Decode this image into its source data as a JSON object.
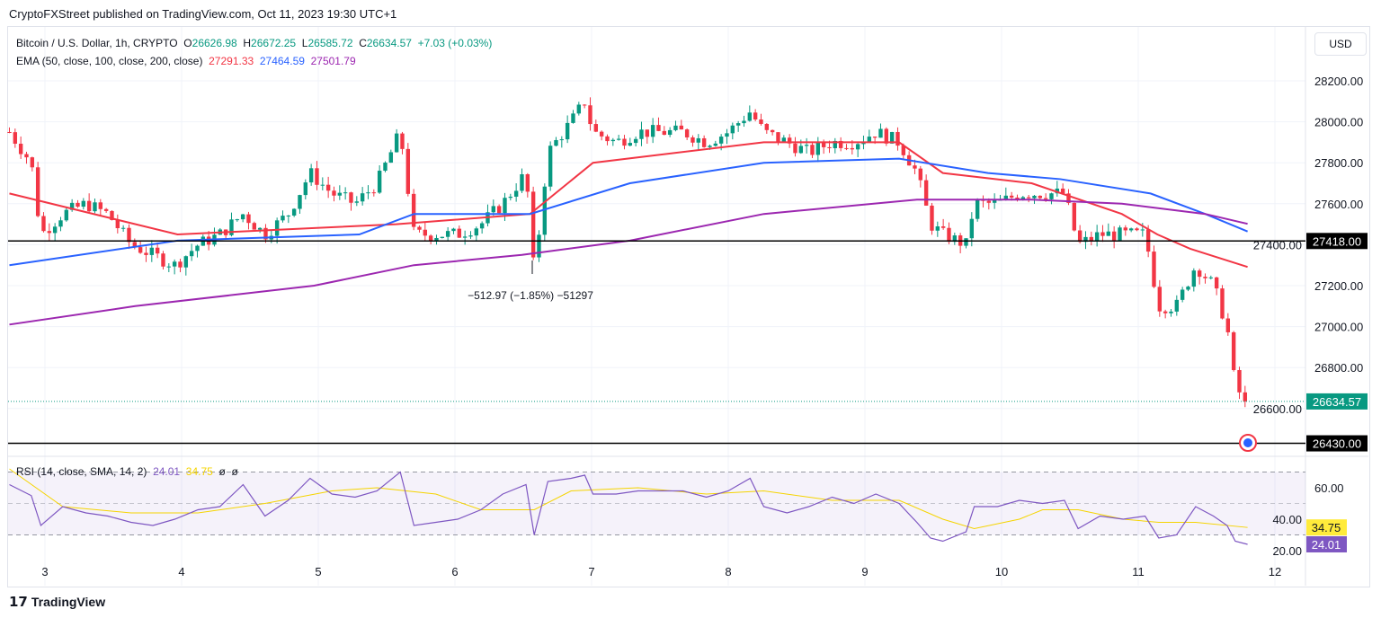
{
  "header": {
    "published": "CryptoFXStreet published on TradingView.com, Oct 11, 2023 19:30 UTC+1"
  },
  "legend": {
    "symbol": "Bitcoin / U.S. Dollar, 1h, CRYPTO",
    "o_label": "O",
    "o": "26626.98",
    "h_label": "H",
    "h": "26672.25",
    "l_label": "L",
    "l": "26585.72",
    "c_label": "C",
    "c": "26634.57",
    "change": "+7.03 (+0.03%)",
    "ema_label": "EMA (50, close, 100, close, 200, close)",
    "ema50": "27291.33",
    "ema100": "27464.59",
    "ema200": "27501.79"
  },
  "currency": "USD",
  "rsi_legend": {
    "label": "RSI (14, close, SMA, 14, 2)",
    "rsi": "24.01",
    "sma": "34.75",
    "extra1": "ø",
    "extra2": "ø"
  },
  "annotation": "−512.97 (−1.85%) −51297",
  "logo": "TradingView",
  "colors": {
    "up": "#089981",
    "down": "#f23645",
    "ema50": "#f23645",
    "ema100": "#2962ff",
    "ema200": "#9c27b0",
    "rsi": "#7e57c2",
    "rsi_sma": "#f5d400"
  },
  "chart_data": [
    {
      "type": "candlestick",
      "xlabel": "",
      "ylabel": "",
      "x_unit": "day of October",
      "x_ticks": [
        "3",
        "4",
        "5",
        "6",
        "7",
        "8",
        "9",
        "10",
        "11",
        "12"
      ],
      "y_ticks": [
        "26600.00",
        "26800.00",
        "27000.00",
        "27200.00",
        "27400.00",
        "27600.00",
        "27800.00",
        "28000.00",
        "28200.00"
      ],
      "ylim": [
        26380,
        28450
      ],
      "grid": true,
      "close_path": [
        [
          2.74,
          27950
        ],
        [
          2.9,
          27800
        ],
        [
          2.97,
          27450
        ],
        [
          3.13,
          27550
        ],
        [
          3.3,
          27600
        ],
        [
          3.46,
          27550
        ],
        [
          3.63,
          27400
        ],
        [
          3.79,
          27350
        ],
        [
          3.95,
          27300
        ],
        [
          4.12,
          27400
        ],
        [
          4.28,
          27450
        ],
        [
          4.45,
          27550
        ],
        [
          4.61,
          27450
        ],
        [
          4.78,
          27550
        ],
        [
          4.94,
          27750
        ],
        [
          5.1,
          27650
        ],
        [
          5.27,
          27600
        ],
        [
          5.43,
          27700
        ],
        [
          5.6,
          27950
        ],
        [
          5.7,
          27450
        ],
        [
          5.86,
          27450
        ],
        [
          6.02,
          27450
        ],
        [
          6.19,
          27500
        ],
        [
          6.35,
          27600
        ],
        [
          6.52,
          27750
        ],
        [
          6.58,
          27250
        ],
        [
          6.68,
          27850
        ],
        [
          6.85,
          28000
        ],
        [
          6.95,
          28100
        ],
        [
          7.01,
          27950
        ],
        [
          7.18,
          27900
        ],
        [
          7.34,
          27950
        ],
        [
          7.51,
          27950
        ],
        [
          7.67,
          27950
        ],
        [
          7.84,
          27900
        ],
        [
          8.0,
          27950
        ],
        [
          8.16,
          28050
        ],
        [
          8.26,
          27950
        ],
        [
          8.43,
          27900
        ],
        [
          8.59,
          27850
        ],
        [
          8.76,
          27900
        ],
        [
          8.92,
          27900
        ],
        [
          9.08,
          27950
        ],
        [
          9.25,
          27900
        ],
        [
          9.38,
          27750
        ],
        [
          9.48,
          27500
        ],
        [
          9.57,
          27450
        ],
        [
          9.74,
          27400
        ],
        [
          9.8,
          27600
        ],
        [
          9.97,
          27600
        ],
        [
          10.13,
          27650
        ],
        [
          10.3,
          27650
        ],
        [
          10.46,
          27650
        ],
        [
          10.56,
          27400
        ],
        [
          10.72,
          27450
        ],
        [
          10.89,
          27450
        ],
        [
          11.05,
          27450
        ],
        [
          11.15,
          27100
        ],
        [
          11.28,
          27100
        ],
        [
          11.42,
          27300
        ],
        [
          11.55,
          27200
        ],
        [
          11.65,
          27000
        ],
        [
          11.71,
          26700
        ],
        [
          11.8,
          26634.57
        ]
      ],
      "series": [
        {
          "name": "EMA 50",
          "points": [
            [
              2.74,
              27650
            ],
            [
              3.97,
              27450
            ],
            [
              5.57,
              27500
            ],
            [
              6.55,
              27550
            ],
            [
              7.01,
              27800
            ],
            [
              8.26,
              27900
            ],
            [
              9.25,
              27900
            ],
            [
              9.57,
              27750
            ],
            [
              10.22,
              27700
            ],
            [
              10.88,
              27550
            ],
            [
              11.14,
              27450
            ],
            [
              11.38,
              27380
            ],
            [
              11.8,
              27291.33
            ]
          ]
        },
        {
          "name": "EMA 100",
          "points": [
            [
              2.74,
              27300
            ],
            [
              3.97,
              27420
            ],
            [
              5.3,
              27450
            ],
            [
              5.7,
              27550
            ],
            [
              6.55,
              27550
            ],
            [
              7.28,
              27700
            ],
            [
              8.26,
              27800
            ],
            [
              9.25,
              27820
            ],
            [
              9.9,
              27750
            ],
            [
              10.43,
              27720
            ],
            [
              11.09,
              27650
            ],
            [
              11.49,
              27550
            ],
            [
              11.8,
              27464.59
            ]
          ]
        },
        {
          "name": "EMA 200",
          "points": [
            [
              2.74,
              27010
            ],
            [
              3.66,
              27100
            ],
            [
              4.97,
              27200
            ],
            [
              5.7,
              27300
            ],
            [
              6.49,
              27350
            ],
            [
              7.28,
              27420
            ],
            [
              8.26,
              27550
            ],
            [
              9.38,
              27620
            ],
            [
              10.22,
              27620
            ],
            [
              10.88,
              27600
            ],
            [
              11.49,
              27550
            ],
            [
              11.8,
              27501.79
            ]
          ]
        }
      ],
      "horizontal_lines": [
        {
          "value": 27418,
          "label": "27418.00"
        },
        {
          "value": 26430,
          "label": "26430.00"
        }
      ],
      "last_price": "26634.57"
    },
    {
      "type": "line",
      "title": "RSI",
      "ylim": [
        15,
        78
      ],
      "y_ticks": [
        "20.00",
        "40.00",
        "60.00"
      ],
      "bands": [
        30,
        50,
        70
      ],
      "series": [
        {
          "name": "RSI",
          "points": [
            [
              2.74,
              62
            ],
            [
              2.9,
              55
            ],
            [
              2.97,
              36
            ],
            [
              3.13,
              48
            ],
            [
              3.3,
              44
            ],
            [
              3.46,
              42
            ],
            [
              3.63,
              38
            ],
            [
              3.79,
              36
            ],
            [
              3.95,
              40
            ],
            [
              4.12,
              46
            ],
            [
              4.28,
              48
            ],
            [
              4.45,
              62
            ],
            [
              4.61,
              42
            ],
            [
              4.78,
              52
            ],
            [
              4.94,
              66
            ],
            [
              5.1,
              56
            ],
            [
              5.27,
              54
            ],
            [
              5.43,
              58
            ],
            [
              5.6,
              70
            ],
            [
              5.7,
              36
            ],
            [
              5.86,
              38
            ],
            [
              6.02,
              40
            ],
            [
              6.19,
              46
            ],
            [
              6.35,
              56
            ],
            [
              6.52,
              62
            ],
            [
              6.58,
              30
            ],
            [
              6.68,
              64
            ],
            [
              6.85,
              66
            ],
            [
              6.95,
              68
            ],
            [
              7.01,
              56
            ],
            [
              7.18,
              56
            ],
            [
              7.34,
              58
            ],
            [
              7.51,
              58
            ],
            [
              7.67,
              58
            ],
            [
              7.84,
              54
            ],
            [
              8.0,
              58
            ],
            [
              8.16,
              66
            ],
            [
              8.26,
              48
            ],
            [
              8.43,
              44
            ],
            [
              8.59,
              48
            ],
            [
              8.76,
              54
            ],
            [
              8.92,
              50
            ],
            [
              9.08,
              56
            ],
            [
              9.25,
              50
            ],
            [
              9.38,
              38
            ],
            [
              9.48,
              28
            ],
            [
              9.57,
              26
            ],
            [
              9.74,
              32
            ],
            [
              9.8,
              48
            ],
            [
              9.97,
              48
            ],
            [
              10.13,
              52
            ],
            [
              10.3,
              50
            ],
            [
              10.46,
              52
            ],
            [
              10.56,
              34
            ],
            [
              10.72,
              42
            ],
            [
              10.89,
              40
            ],
            [
              11.05,
              42
            ],
            [
              11.15,
              28
            ],
            [
              11.28,
              30
            ],
            [
              11.42,
              48
            ],
            [
              11.55,
              42
            ],
            [
              11.65,
              36
            ],
            [
              11.71,
              26
            ],
            [
              11.8,
              24.01
            ]
          ]
        },
        {
          "name": "RSI SMA",
          "points": [
            [
              2.74,
              72
            ],
            [
              3.13,
              48
            ],
            [
              3.63,
              44
            ],
            [
              4.12,
              44
            ],
            [
              4.61,
              50
            ],
            [
              5.1,
              58
            ],
            [
              5.43,
              60
            ],
            [
              5.86,
              56
            ],
            [
              6.19,
              46
            ],
            [
              6.58,
              46
            ],
            [
              6.85,
              58
            ],
            [
              7.34,
              60
            ],
            [
              7.84,
              56
            ],
            [
              8.26,
              58
            ],
            [
              8.76,
              52
            ],
            [
              9.25,
              52
            ],
            [
              9.57,
              40
            ],
            [
              9.8,
              34
            ],
            [
              10.13,
              40
            ],
            [
              10.3,
              46
            ],
            [
              10.56,
              46
            ],
            [
              10.89,
              40
            ],
            [
              11.15,
              38
            ],
            [
              11.42,
              38
            ],
            [
              11.8,
              34.75
            ]
          ]
        }
      ]
    }
  ]
}
